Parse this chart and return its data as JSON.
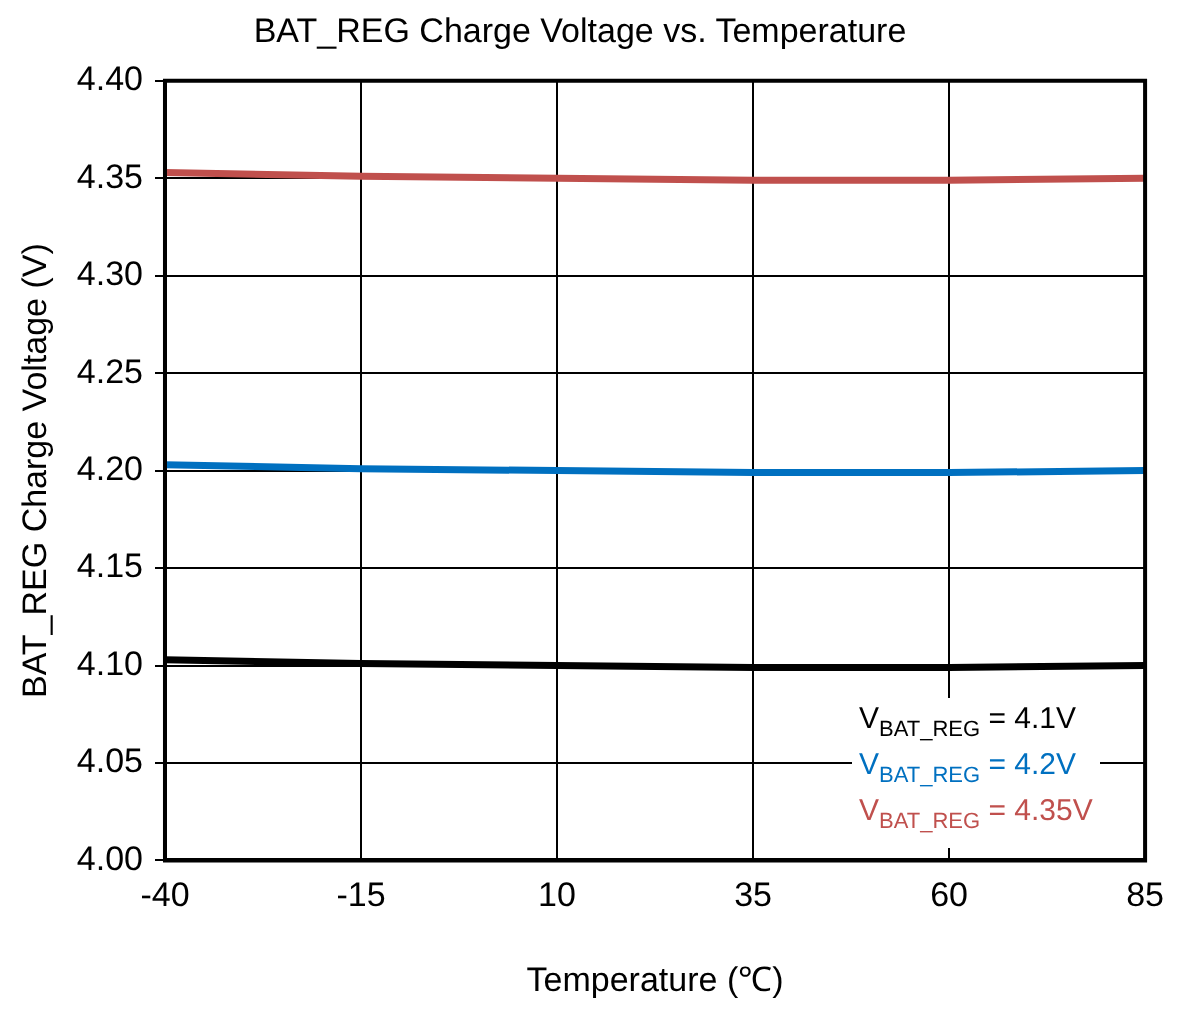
{
  "chart_data": {
    "type": "line",
    "title": "BAT_REG Charge Voltage vs. Temperature",
    "xlabel": "Temperature (℃)",
    "ylabel": "BAT_REG Charge Voltage (V)",
    "x": [
      -40,
      -15,
      10,
      35,
      60,
      85
    ],
    "series": [
      {
        "name": "V$_{BAT_REG}$ = 4.1V",
        "color": "#000000",
        "values": [
          4.103,
          4.101,
          4.1,
          4.099,
          4.099,
          4.1
        ]
      },
      {
        "name": "V$_{BAT_REG}$ = 4.2V",
        "color": "#0070c0",
        "values": [
          4.203,
          4.201,
          4.2,
          4.199,
          4.199,
          4.2
        ]
      },
      {
        "name": "V$_{BAT_REG}$ = 4.35V",
        "color": "#c0504d",
        "values": [
          4.353,
          4.351,
          4.35,
          4.349,
          4.349,
          4.35
        ]
      }
    ],
    "xlim": [
      -40,
      85
    ],
    "xticks": [
      -40,
      -15,
      10,
      35,
      60,
      85
    ],
    "ylim": [
      4.0,
      4.4
    ],
    "yticks": [
      {
        "value": 4.0,
        "label": "4.00"
      },
      {
        "value": 4.05,
        "label": "4.05"
      },
      {
        "value": 4.1,
        "label": "4.10"
      },
      {
        "value": 4.15,
        "label": "4.15"
      },
      {
        "value": 4.2,
        "label": "4.20"
      },
      {
        "value": 4.25,
        "label": "4.25"
      },
      {
        "value": 4.3,
        "label": "4.30"
      },
      {
        "value": 4.35,
        "label": "4.35"
      },
      {
        "value": 4.4,
        "label": "4.40"
      }
    ],
    "grid": true,
    "legend": "bottom right",
    "marker": "none",
    "line_style": "solid"
  }
}
